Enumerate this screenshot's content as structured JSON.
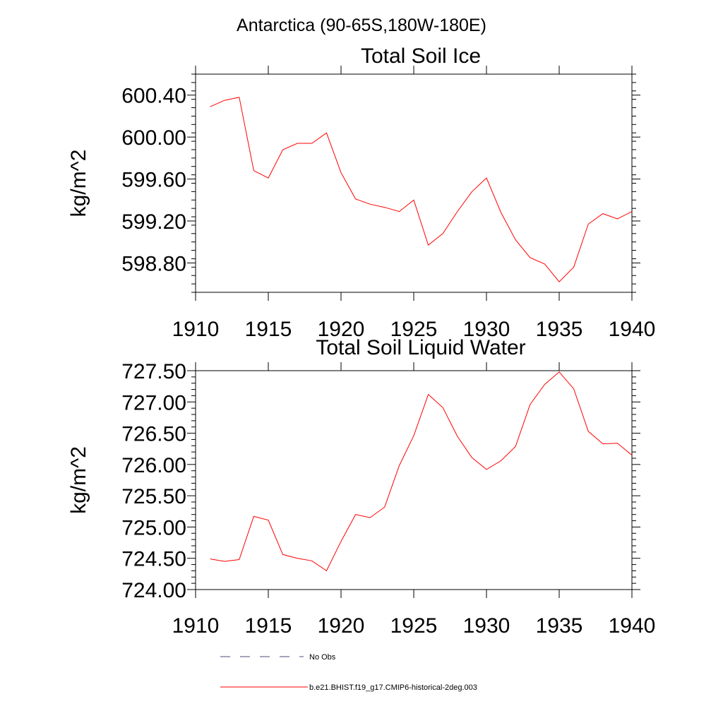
{
  "figure": {
    "suptitle": "Antarctica (90-65S,180W-180E)"
  },
  "chart_data": [
    {
      "type": "line",
      "title": "Total Soil Ice",
      "xlabel": "",
      "ylabel": "kg/m^2",
      "xlim": [
        1910,
        1940
      ],
      "ylim": [
        598.52,
        600.6
      ],
      "x_ticks": [
        1910,
        1915,
        1920,
        1925,
        1930,
        1935,
        1940
      ],
      "x_tick_labels": [
        "1910",
        "1915",
        "1920",
        "1925",
        "1930",
        "1935",
        "1940"
      ],
      "y_ticks": [
        598.8,
        599.2,
        599.6,
        600.0,
        600.4
      ],
      "y_tick_labels": [
        "598.80",
        "599.20",
        "599.60",
        "600.00",
        "600.40"
      ],
      "grid": false,
      "series": [
        {
          "name": "b.e21.BHIST.f19_g17.CMIP6-historical-2deg.003",
          "color": "#ff0000",
          "x": [
            1911,
            1912,
            1913,
            1914,
            1915,
            1916,
            1917,
            1918,
            1919,
            1920,
            1921,
            1922,
            1923,
            1924,
            1925,
            1926,
            1927,
            1928,
            1929,
            1930,
            1931,
            1932,
            1933,
            1934,
            1935,
            1936,
            1937,
            1938,
            1939,
            1940
          ],
          "y": [
            600.29,
            600.35,
            600.38,
            599.68,
            599.61,
            599.88,
            599.94,
            599.94,
            600.04,
            599.66,
            599.41,
            599.36,
            599.33,
            599.29,
            599.4,
            598.97,
            599.08,
            599.29,
            599.48,
            599.61,
            599.28,
            599.02,
            598.85,
            598.79,
            598.62,
            598.76,
            599.17,
            599.27,
            599.22,
            599.29
          ]
        }
      ]
    },
    {
      "type": "line",
      "title": "Total Soil Liquid Water",
      "xlabel": "",
      "ylabel": "kg/m^2",
      "xlim": [
        1910,
        1940
      ],
      "ylim": [
        724.0,
        727.5
      ],
      "x_ticks": [
        1910,
        1915,
        1920,
        1925,
        1930,
        1935,
        1940
      ],
      "x_tick_labels": [
        "1910",
        "1915",
        "1920",
        "1925",
        "1930",
        "1935",
        "1940"
      ],
      "y_ticks": [
        724.0,
        724.5,
        725.0,
        725.5,
        726.0,
        726.5,
        727.0,
        727.5
      ],
      "y_tick_labels": [
        "724.00",
        "724.50",
        "725.00",
        "725.50",
        "726.00",
        "726.50",
        "727.00",
        "727.50"
      ],
      "grid": false,
      "series": [
        {
          "name": "b.e21.BHIST.f19_g17.CMIP6-historical-2deg.003",
          "color": "#ff0000",
          "x": [
            1911,
            1912,
            1913,
            1914,
            1915,
            1916,
            1917,
            1918,
            1919,
            1920,
            1921,
            1922,
            1923,
            1924,
            1925,
            1926,
            1927,
            1928,
            1929,
            1930,
            1931,
            1932,
            1933,
            1934,
            1935,
            1936,
            1937,
            1938,
            1939,
            1940
          ],
          "y": [
            724.49,
            724.45,
            724.48,
            725.17,
            725.11,
            724.56,
            724.5,
            724.46,
            724.3,
            724.77,
            725.2,
            725.15,
            725.32,
            725.98,
            726.46,
            727.12,
            726.91,
            726.45,
            726.11,
            725.92,
            726.06,
            726.29,
            726.96,
            727.28,
            727.48,
            727.21,
            726.53,
            726.33,
            726.34,
            726.15
          ]
        }
      ]
    }
  ],
  "legend": {
    "placement": "bottom",
    "entries": [
      {
        "label": "No Obs",
        "color": "#4a4a7a",
        "style": "dashed"
      },
      {
        "label": "b.e21.BHIST.f19_g17.CMIP6-historical-2deg.003",
        "color": "#ff0000",
        "style": "solid"
      }
    ]
  }
}
